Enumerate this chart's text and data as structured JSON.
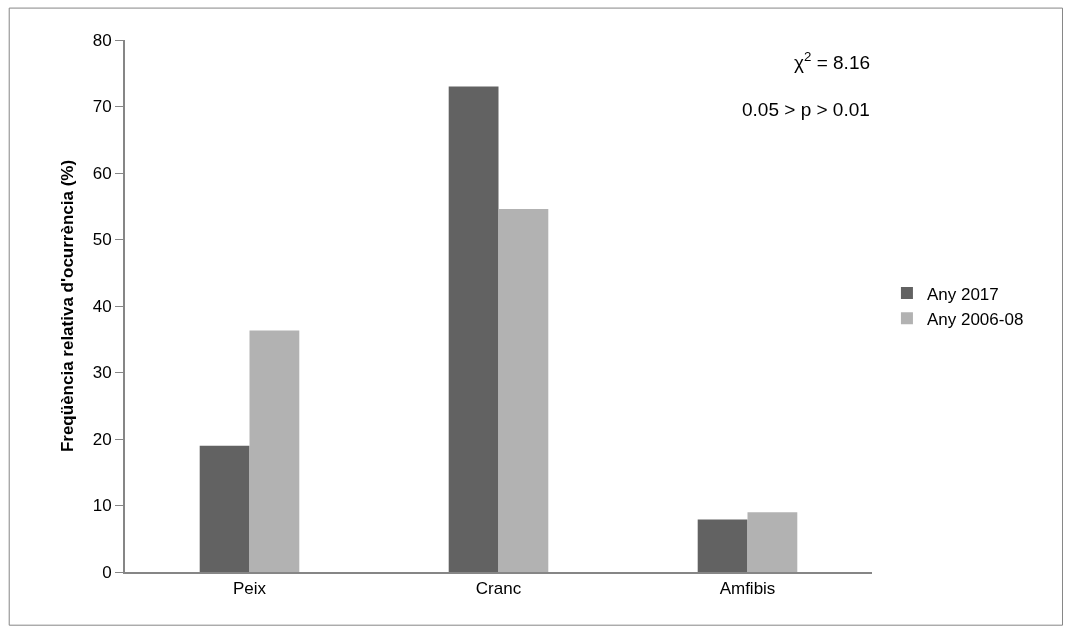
{
  "chart_data": {
    "type": "bar",
    "ylabel": "Freqüència relativa d'ocurrència (%)",
    "categories": [
      "Peix",
      "Cranc",
      "Amfibis"
    ],
    "series": [
      {
        "name": "Any 2017",
        "color": "#626262",
        "values": [
          19.0,
          73.0,
          7.9
        ]
      },
      {
        "name": "Any 2006-08",
        "color": "#b2b2b2",
        "values": [
          36.3,
          54.6,
          9.0
        ]
      }
    ],
    "ylim": [
      0,
      80
    ],
    "yticks": [
      0,
      10,
      20,
      30,
      40,
      50,
      60,
      70,
      80
    ],
    "legend": "right",
    "annotations": [
      "χ$^{2}$ = 8.16",
      "0.05 > p > 0.01"
    ]
  }
}
